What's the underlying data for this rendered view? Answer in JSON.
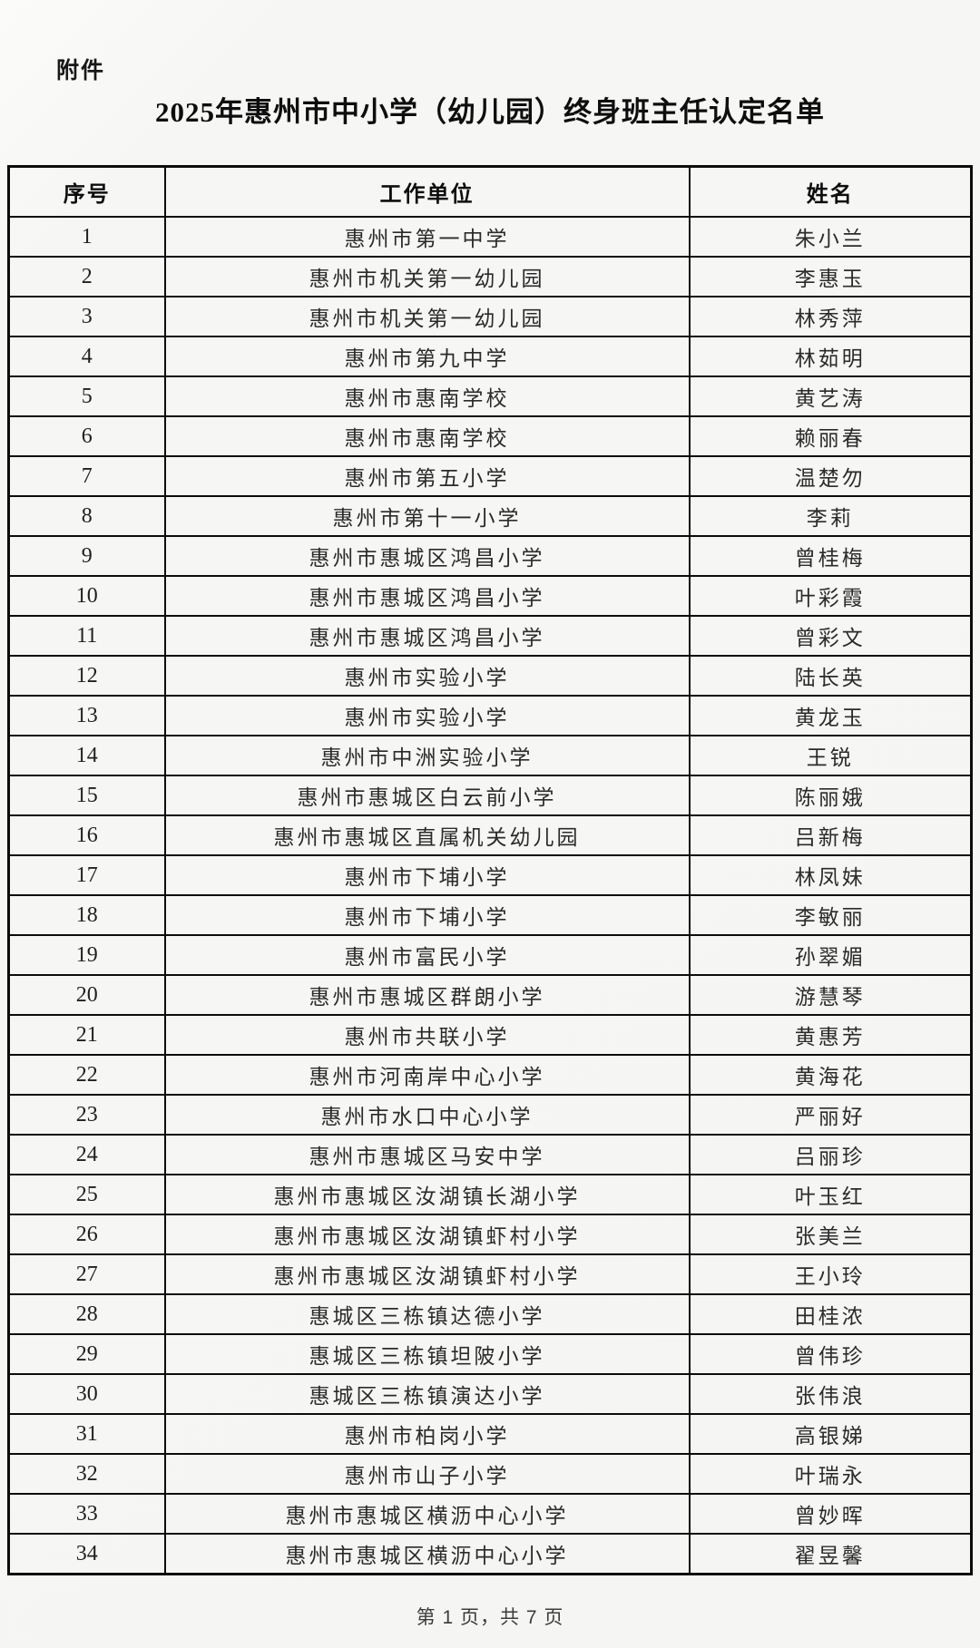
{
  "attachment_label": "附件",
  "title": "2025年惠州市中小学（幼儿园）终身班主任认定名单",
  "table": {
    "columns": [
      "序号",
      "工作单位",
      "姓名"
    ],
    "rows": [
      {
        "no": "1",
        "unit": "惠州市第一中学",
        "name": "朱小兰"
      },
      {
        "no": "2",
        "unit": "惠州市机关第一幼儿园",
        "name": "李惠玉"
      },
      {
        "no": "3",
        "unit": "惠州市机关第一幼儿园",
        "name": "林秀萍"
      },
      {
        "no": "4",
        "unit": "惠州市第九中学",
        "name": "林茹明"
      },
      {
        "no": "5",
        "unit": "惠州市惠南学校",
        "name": "黄艺涛"
      },
      {
        "no": "6",
        "unit": "惠州市惠南学校",
        "name": "赖丽春"
      },
      {
        "no": "7",
        "unit": "惠州市第五小学",
        "name": "温楚勿"
      },
      {
        "no": "8",
        "unit": "惠州市第十一小学",
        "name": "李莉"
      },
      {
        "no": "9",
        "unit": "惠州市惠城区鸿昌小学",
        "name": "曾桂梅"
      },
      {
        "no": "10",
        "unit": "惠州市惠城区鸿昌小学",
        "name": "叶彩霞"
      },
      {
        "no": "11",
        "unit": "惠州市惠城区鸿昌小学",
        "name": "曾彩文"
      },
      {
        "no": "12",
        "unit": "惠州市实验小学",
        "name": "陆长英"
      },
      {
        "no": "13",
        "unit": "惠州市实验小学",
        "name": "黄龙玉"
      },
      {
        "no": "14",
        "unit": "惠州市中洲实验小学",
        "name": "王锐"
      },
      {
        "no": "15",
        "unit": "惠州市惠城区白云前小学",
        "name": "陈丽娥"
      },
      {
        "no": "16",
        "unit": "惠州市惠城区直属机关幼儿园",
        "name": "吕新梅"
      },
      {
        "no": "17",
        "unit": "惠州市下埔小学",
        "name": "林凤妹"
      },
      {
        "no": "18",
        "unit": "惠州市下埔小学",
        "name": "李敏丽"
      },
      {
        "no": "19",
        "unit": "惠州市富民小学",
        "name": "孙翠媚"
      },
      {
        "no": "20",
        "unit": "惠州市惠城区群朗小学",
        "name": "游慧琴"
      },
      {
        "no": "21",
        "unit": "惠州市共联小学",
        "name": "黄惠芳"
      },
      {
        "no": "22",
        "unit": "惠州市河南岸中心小学",
        "name": "黄海花"
      },
      {
        "no": "23",
        "unit": "惠州市水口中心小学",
        "name": "严丽好"
      },
      {
        "no": "24",
        "unit": "惠州市惠城区马安中学",
        "name": "吕丽珍"
      },
      {
        "no": "25",
        "unit": "惠州市惠城区汝湖镇长湖小学",
        "name": "叶玉红"
      },
      {
        "no": "26",
        "unit": "惠州市惠城区汝湖镇虾村小学",
        "name": "张美兰"
      },
      {
        "no": "27",
        "unit": "惠州市惠城区汝湖镇虾村小学",
        "name": "王小玲"
      },
      {
        "no": "28",
        "unit": "惠城区三栋镇达德小学",
        "name": "田桂浓"
      },
      {
        "no": "29",
        "unit": "惠城区三栋镇坦陂小学",
        "name": "曾伟珍"
      },
      {
        "no": "30",
        "unit": "惠城区三栋镇演达小学",
        "name": "张伟浪"
      },
      {
        "no": "31",
        "unit": "惠州市柏岗小学",
        "name": "高银娣"
      },
      {
        "no": "32",
        "unit": "惠州市山子小学",
        "name": "叶瑞永"
      },
      {
        "no": "33",
        "unit": "惠州市惠城区横沥中心小学",
        "name": "曾妙晖"
      },
      {
        "no": "34",
        "unit": "惠州市惠城区横沥中心小学",
        "name": "翟昱馨"
      }
    ]
  },
  "footer": "第 1 页，共 7 页"
}
